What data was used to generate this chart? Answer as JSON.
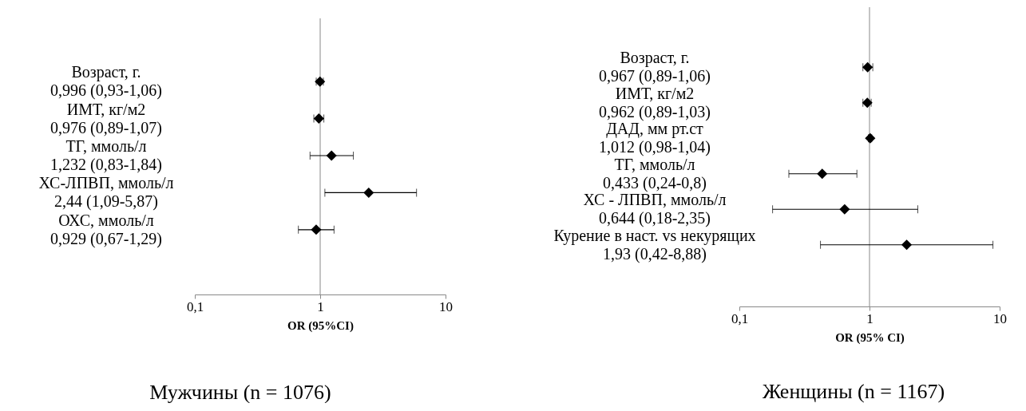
{
  "chart_data": [
    {
      "type": "scatter",
      "title": "Мужчины (n = 1076)",
      "xlabel": "OR (95%CI)",
      "orientation": "horizontal",
      "log": "x",
      "marker": "diamond",
      "grid": false,
      "xlim": [
        0.1,
        10
      ],
      "xticks": [
        {
          "value": 0.1,
          "label": "0,1"
        },
        1,
        10
      ],
      "categories": [
        "Возраст, г.",
        "ИМТ, кг/м2",
        "ТГ, ммоль/л",
        "ХС-ЛПВП, ммоль/л",
        "ОХС, ммоль/л"
      ],
      "values": [
        0.996,
        0.976,
        1.232,
        2.44,
        0.929
      ],
      "errors": [
        [
          0.93,
          1.06
        ],
        [
          0.89,
          1.07
        ],
        [
          0.83,
          1.84
        ],
        [
          1.09,
          5.87
        ],
        [
          0.67,
          1.29
        ]
      ],
      "value_labels": [
        "0,996 (0,93-1,06)",
        "0,976 (0,89-1,07)",
        "1,232 (0,83-1,84)",
        "2,44 (1,09-5,87)",
        "0,929 (0,67-1,29)"
      ],
      "ref_lines": [
        {
          "axis": "x",
          "value": 1
        }
      ],
      "color": "#000000"
    },
    {
      "type": "scatter",
      "title": "Женщины (n = 1167)",
      "xlabel": "OR (95% CI)",
      "orientation": "horizontal",
      "log": "x",
      "marker": "diamond",
      "grid": false,
      "xlim": [
        0.1,
        10
      ],
      "xticks": [
        {
          "value": 0.1,
          "label": "0,1"
        },
        1,
        10
      ],
      "categories": [
        "Возраст, г.",
        "ИМТ, кг/м2",
        "ДАД, мм рт.ст",
        "ТГ, ммоль/л",
        "ХС - ЛПВП, ммоль/л",
        "Курение в наст. vs некурящих"
      ],
      "values": [
        0.967,
        0.962,
        1.012,
        0.433,
        0.644,
        1.93
      ],
      "errors": [
        [
          0.89,
          1.06
        ],
        [
          0.89,
          1.03
        ],
        [
          0.98,
          1.04
        ],
        [
          0.24,
          0.8
        ],
        [
          0.18,
          2.35
        ],
        [
          0.42,
          8.88
        ]
      ],
      "value_labels": [
        "0,967 (0,89-1,06)",
        "0,962 (0,89-1,03)",
        "1,012 (0,98-1,04)",
        "0,433 (0,24-0,8)",
        "0,644 (0,18-2,35)",
        "1,93 (0,42-8,88)"
      ],
      "ref_lines": [
        {
          "axis": "x",
          "value": 1
        }
      ],
      "color": "#000000"
    }
  ]
}
